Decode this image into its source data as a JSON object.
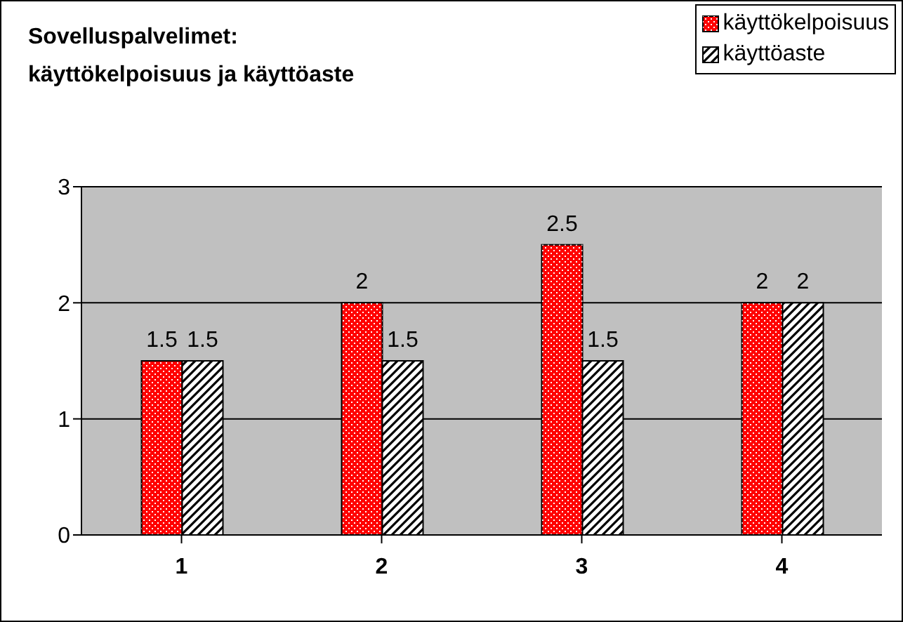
{
  "chart_data": {
    "type": "bar",
    "title": "Sovelluspalvelimet:\nkäyttökelpoisuus ja käyttöaste",
    "categories": [
      "1",
      "2",
      "3",
      "4"
    ],
    "series": [
      {
        "name": "käyttökelpoisuus",
        "color": "#ff0000",
        "values": [
          1.5,
          2,
          2.5,
          2
        ]
      },
      {
        "name": "käyttöaste",
        "color": "#ffffff",
        "values": [
          1.5,
          1.5,
          1.5,
          2
        ]
      }
    ],
    "ylim": [
      0,
      3
    ],
    "yticks": [
      0,
      1,
      2,
      3
    ],
    "grid": "y",
    "legend": "top right",
    "data_labels": true
  }
}
